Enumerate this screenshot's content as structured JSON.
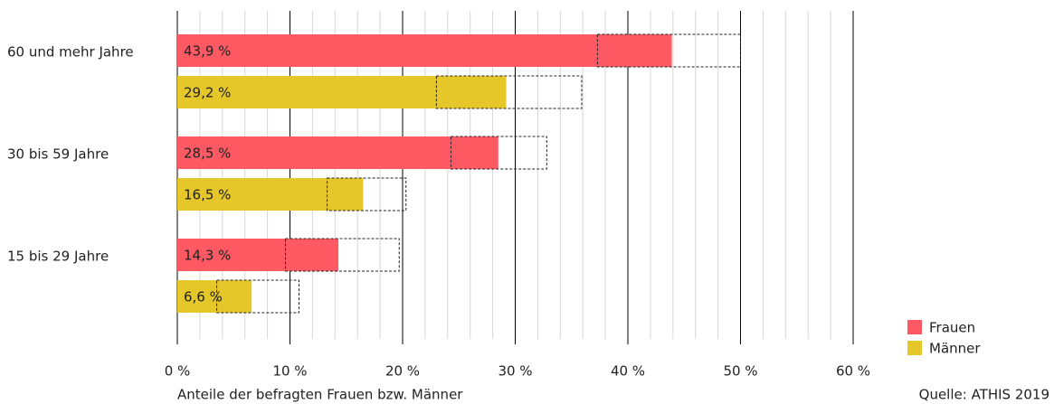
{
  "chart_data": {
    "type": "bar",
    "orientation": "horizontal",
    "categories": [
      "60 und mehr Jahre",
      "30 bis 59 Jahre",
      "15 bis 29 Jahre"
    ],
    "series": [
      {
        "name": "Frauen",
        "color": "#ff5a64",
        "label_color": "#ffffff",
        "values": [
          43.9,
          28.5,
          14.3
        ],
        "value_labels": [
          "43,9 %",
          "28,5 %",
          "14,3 %"
        ],
        "ci_low": [
          37.3,
          24.3,
          9.6
        ],
        "ci_high": [
          50.0,
          32.8,
          19.7
        ]
      },
      {
        "name": "Männer",
        "color": "#e5c72a",
        "label_color": "#222222",
        "values": [
          29.2,
          16.5,
          6.6
        ],
        "value_labels": [
          "29,2 %",
          "16,5 %",
          "6,6 %"
        ],
        "ci_low": [
          23.0,
          13.3,
          3.5
        ],
        "ci_high": [
          35.9,
          20.3,
          10.8
        ]
      }
    ],
    "xlim": [
      0,
      60
    ],
    "xticks": [
      {
        "value": 0,
        "label": "0 %"
      },
      {
        "value": 10,
        "label": "10 %"
      },
      {
        "value": 20,
        "label": "20 %"
      },
      {
        "value": 30,
        "label": "30 %"
      },
      {
        "value": 40,
        "label": "40 %"
      },
      {
        "value": 50,
        "label": "50 %"
      },
      {
        "value": 60,
        "label": "60 %"
      }
    ],
    "xminor_ticks": [
      2,
      4,
      6,
      8,
      12,
      14,
      16,
      18,
      22,
      24,
      26,
      28,
      32,
      34,
      36,
      38,
      42,
      44,
      46,
      48,
      52,
      54,
      56,
      58
    ],
    "xlabel": "Anteile der befragten Frauen bzw. Männer",
    "source": "Quelle: ATHIS 2019",
    "legend": "bottom-right",
    "grid": true
  }
}
